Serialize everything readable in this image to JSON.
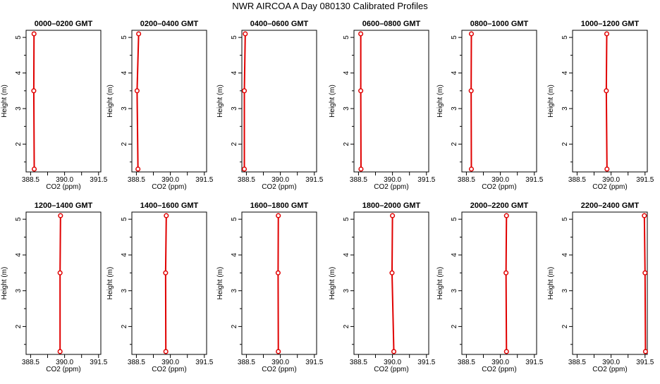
{
  "title": "NWR AIRCOA A  Day 080130  Calibrated Profiles",
  "colors": {
    "series": "#e00000",
    "axis": "#000000"
  },
  "chart_data": [
    {
      "type": "line",
      "title": "0000–0200 GMT",
      "xlabel": "CO2 (ppm)",
      "ylabel": "Height (m)",
      "xlim": [
        388.3,
        391.6
      ],
      "ylim": [
        1.22,
        5.2
      ],
      "xticks": [
        388.5,
        390.0,
        391.5
      ],
      "xtick_labels": [
        "388.5",
        "390.0",
        "391.5"
      ],
      "yticks": [
        2,
        3,
        4,
        5
      ],
      "grid": false,
      "series": [
        {
          "x": [
            388.65,
            388.64,
            388.66
          ],
          "y": [
            5.1,
            3.5,
            1.3
          ]
        }
      ]
    },
    {
      "type": "line",
      "title": "0200–0400 GMT",
      "xlabel": "CO2 (ppm)",
      "ylabel": "Height (m)",
      "xlim": [
        388.3,
        391.6
      ],
      "ylim": [
        1.22,
        5.2
      ],
      "xticks": [
        388.5,
        390.0,
        391.5
      ],
      "xtick_labels": [
        "388.5",
        "390.0",
        "391.5"
      ],
      "yticks": [
        2,
        3,
        4,
        5
      ],
      "grid": false,
      "series": [
        {
          "x": [
            388.6,
            388.53,
            388.57
          ],
          "y": [
            5.1,
            3.5,
            1.3
          ]
        }
      ]
    },
    {
      "type": "line",
      "title": "0400–0600 GMT",
      "xlabel": "CO2 (ppm)",
      "ylabel": "Height (m)",
      "xlim": [
        388.3,
        391.6
      ],
      "ylim": [
        1.22,
        5.2
      ],
      "xticks": [
        388.5,
        390.0,
        391.5
      ],
      "xtick_labels": [
        "388.5",
        "390.0",
        "391.5"
      ],
      "yticks": [
        2,
        3,
        4,
        5
      ],
      "grid": false,
      "series": [
        {
          "x": [
            388.45,
            388.41,
            388.41
          ],
          "y": [
            5.1,
            3.5,
            1.3
          ]
        }
      ]
    },
    {
      "type": "line",
      "title": "0600–0800 GMT",
      "xlabel": "CO2 (ppm)",
      "ylabel": "Height (m)",
      "xlim": [
        388.3,
        391.6
      ],
      "ylim": [
        1.22,
        5.2
      ],
      "xticks": [
        388.5,
        390.0,
        391.5
      ],
      "xtick_labels": [
        "388.5",
        "390.0",
        "391.5"
      ],
      "yticks": [
        2,
        3,
        4,
        5
      ],
      "grid": false,
      "series": [
        {
          "x": [
            388.6,
            388.6,
            388.61
          ],
          "y": [
            5.1,
            3.5,
            1.3
          ]
        }
      ]
    },
    {
      "type": "line",
      "title": "0800–1000 GMT",
      "xlabel": "CO2 (ppm)",
      "ylabel": "Height (m)",
      "xlim": [
        388.3,
        391.6
      ],
      "ylim": [
        1.22,
        5.2
      ],
      "xticks": [
        388.5,
        390.0,
        391.5
      ],
      "xtick_labels": [
        "388.5",
        "390.0",
        "391.5"
      ],
      "yticks": [
        2,
        3,
        4,
        5
      ],
      "grid": false,
      "series": [
        {
          "x": [
            388.72,
            388.71,
            388.72
          ],
          "y": [
            5.1,
            3.5,
            1.3
          ]
        }
      ]
    },
    {
      "type": "line",
      "title": "1000–1200 GMT",
      "xlabel": "CO2 (ppm)",
      "ylabel": "Height (m)",
      "xlim": [
        388.3,
        391.6
      ],
      "ylim": [
        1.22,
        5.2
      ],
      "xticks": [
        388.5,
        390.0,
        391.5
      ],
      "xtick_labels": [
        "388.5",
        "390.0",
        "391.5"
      ],
      "yticks": [
        2,
        3,
        4,
        5
      ],
      "grid": false,
      "series": [
        {
          "x": [
            389.81,
            389.79,
            389.82
          ],
          "y": [
            5.1,
            3.5,
            1.3
          ]
        }
      ]
    },
    {
      "type": "line",
      "title": "1200–1400 GMT",
      "xlabel": "CO2 (ppm)",
      "ylabel": "Height (m)",
      "xlim": [
        388.3,
        391.6
      ],
      "ylim": [
        1.22,
        5.2
      ],
      "xticks": [
        388.5,
        390.0,
        391.5
      ],
      "xtick_labels": [
        "388.5",
        "390.0",
        "391.5"
      ],
      "yticks": [
        2,
        3,
        4,
        5
      ],
      "grid": false,
      "series": [
        {
          "x": [
            389.82,
            389.8,
            389.8
          ],
          "y": [
            5.1,
            3.5,
            1.3
          ]
        }
      ]
    },
    {
      "type": "line",
      "title": "1400–1600 GMT",
      "xlabel": "CO2 (ppm)",
      "ylabel": "Height (m)",
      "xlim": [
        388.3,
        391.6
      ],
      "ylim": [
        1.22,
        5.2
      ],
      "xticks": [
        388.5,
        390.0,
        391.5
      ],
      "xtick_labels": [
        "388.5",
        "390.0",
        "391.5"
      ],
      "yticks": [
        2,
        3,
        4,
        5
      ],
      "grid": false,
      "series": [
        {
          "x": [
            389.82,
            389.79,
            389.8
          ],
          "y": [
            5.1,
            3.5,
            1.3
          ]
        }
      ]
    },
    {
      "type": "line",
      "title": "1600–1800 GMT",
      "xlabel": "CO2 (ppm)",
      "ylabel": "Height (m)",
      "xlim": [
        388.3,
        391.6
      ],
      "ylim": [
        1.22,
        5.2
      ],
      "xticks": [
        388.5,
        390.0,
        391.5
      ],
      "xtick_labels": [
        "388.5",
        "390.0",
        "391.5"
      ],
      "yticks": [
        2,
        3,
        4,
        5
      ],
      "grid": false,
      "series": [
        {
          "x": [
            389.91,
            389.9,
            389.91
          ],
          "y": [
            5.1,
            3.5,
            1.3
          ]
        }
      ]
    },
    {
      "type": "line",
      "title": "1800–2000 GMT",
      "xlabel": "CO2 (ppm)",
      "ylabel": "Height (m)",
      "xlim": [
        388.3,
        391.6
      ],
      "ylim": [
        1.22,
        5.2
      ],
      "xticks": [
        388.5,
        390.0,
        391.5
      ],
      "xtick_labels": [
        "388.5",
        "390.0",
        "391.5"
      ],
      "yticks": [
        2,
        3,
        4,
        5
      ],
      "grid": false,
      "series": [
        {
          "x": [
            390.0,
            389.98,
            390.06
          ],
          "y": [
            5.1,
            3.5,
            1.3
          ]
        }
      ]
    },
    {
      "type": "line",
      "title": "2000–2200 GMT",
      "xlabel": "CO2 (ppm)",
      "ylabel": "Height (m)",
      "xlim": [
        388.3,
        391.6
      ],
      "ylim": [
        1.22,
        5.2
      ],
      "xticks": [
        388.5,
        390.0,
        391.5
      ],
      "xtick_labels": [
        "388.5",
        "390.0",
        "391.5"
      ],
      "yticks": [
        2,
        3,
        4,
        5
      ],
      "grid": false,
      "series": [
        {
          "x": [
            390.27,
            390.25,
            390.27
          ],
          "y": [
            5.1,
            3.5,
            1.3
          ]
        }
      ]
    },
    {
      "type": "line",
      "title": "2200–2400 GMT",
      "xlabel": "CO2 (ppm)",
      "ylabel": "Height (m)",
      "xlim": [
        388.3,
        391.6
      ],
      "ylim": [
        1.22,
        5.2
      ],
      "xticks": [
        388.5,
        390.0,
        391.5
      ],
      "xtick_labels": [
        "388.5",
        "390.0",
        "391.5"
      ],
      "yticks": [
        2,
        3,
        4,
        5
      ],
      "grid": false,
      "series": [
        {
          "x": [
            391.47,
            391.5,
            391.52
          ],
          "y": [
            5.1,
            3.5,
            1.3
          ]
        }
      ]
    }
  ]
}
